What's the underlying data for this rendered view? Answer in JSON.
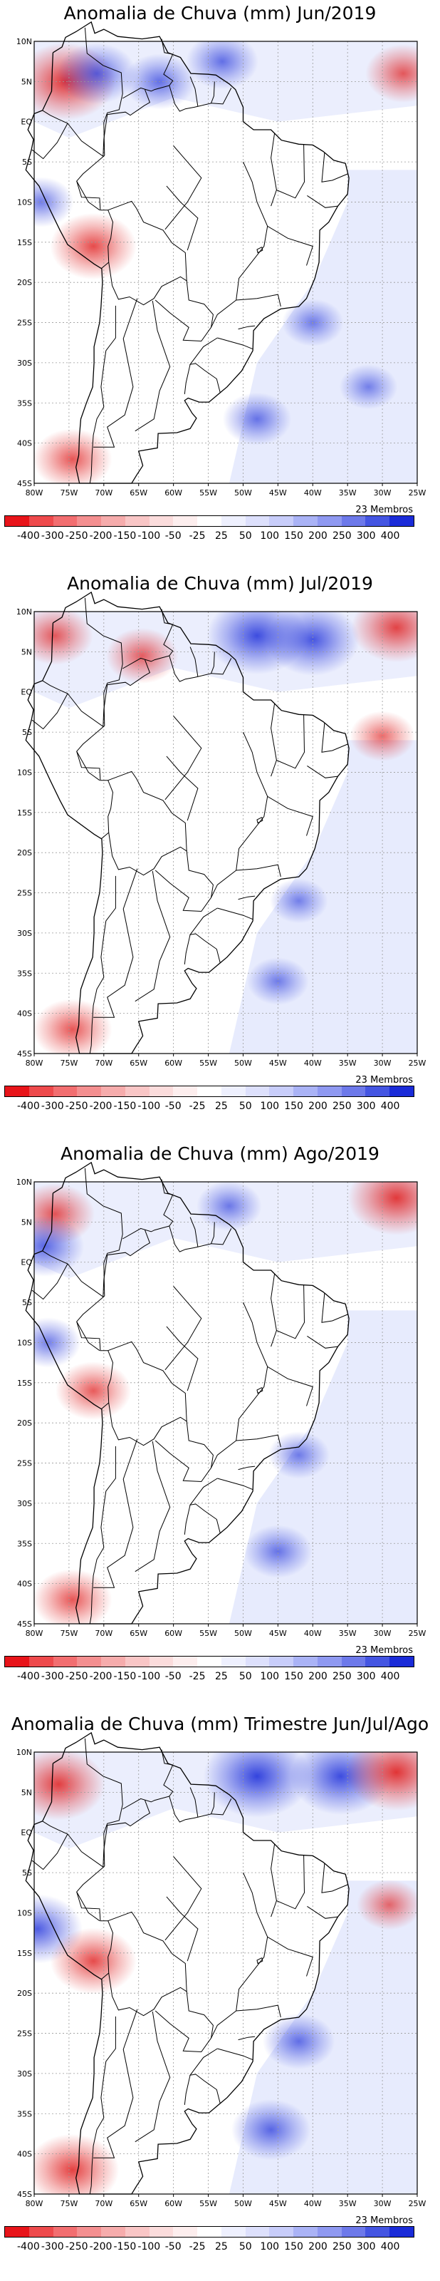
{
  "panels": [
    {
      "title": "Anomalia de Chuva (mm) Jun/2019",
      "members": "23 Membros",
      "anomalies": [
        {
          "kind": "neg",
          "lon": -75.5,
          "lat": 5.0,
          "strength": 0.9
        },
        {
          "kind": "pos",
          "lon": -71.0,
          "lat": 6.0,
          "strength": 0.6
        },
        {
          "kind": "pos",
          "lon": -62.0,
          "lat": 5.0,
          "strength": 0.5
        },
        {
          "kind": "pos",
          "lon": -53.0,
          "lat": 7.5,
          "strength": 0.5
        },
        {
          "kind": "neg",
          "lon": -27.0,
          "lat": 6.0,
          "strength": 0.55
        },
        {
          "kind": "pos",
          "lon": -40.0,
          "lat": -25.0,
          "strength": 0.35
        },
        {
          "kind": "pos",
          "lon": -48.0,
          "lat": -37.0,
          "strength": 0.45
        },
        {
          "kind": "pos",
          "lon": -32.0,
          "lat": -33.0,
          "strength": 0.3
        },
        {
          "kind": "pos",
          "lon": -79.0,
          "lat": -10.0,
          "strength": 0.4
        },
        {
          "kind": "neg",
          "lon": -71.5,
          "lat": -15.5,
          "strength": 0.7
        },
        {
          "kind": "neg",
          "lon": -74.5,
          "lat": -42.0,
          "strength": 0.6
        }
      ]
    },
    {
      "title": "Anomalia de Chuva (mm) Jul/2019",
      "members": "23 Membros",
      "anomalies": [
        {
          "kind": "pos",
          "lon": -48.0,
          "lat": 7.0,
          "strength": 0.9
        },
        {
          "kind": "pos",
          "lon": -40.0,
          "lat": 6.5,
          "strength": 0.8
        },
        {
          "kind": "neg",
          "lon": -28.0,
          "lat": 8.0,
          "strength": 0.75
        },
        {
          "kind": "neg",
          "lon": -64.5,
          "lat": 4.5,
          "strength": 0.5
        },
        {
          "kind": "neg",
          "lon": -77.0,
          "lat": 7.0,
          "strength": 0.55
        },
        {
          "kind": "neg",
          "lon": -30.0,
          "lat": -5.5,
          "strength": 0.4
        },
        {
          "kind": "pos",
          "lon": -42.0,
          "lat": -26.0,
          "strength": 0.3
        },
        {
          "kind": "pos",
          "lon": -45.0,
          "lat": -36.0,
          "strength": 0.35
        },
        {
          "kind": "neg",
          "lon": -74.5,
          "lat": -42.0,
          "strength": 0.6
        }
      ]
    },
    {
      "title": "Anomalia de Chuva (mm) Ago/2019",
      "members": "23 Membros",
      "anomalies": [
        {
          "kind": "neg",
          "lon": -28.0,
          "lat": 8.0,
          "strength": 0.85
        },
        {
          "kind": "neg",
          "lon": -77.0,
          "lat": 6.0,
          "strength": 0.6
        },
        {
          "kind": "pos",
          "lon": -78.5,
          "lat": 2.0,
          "strength": 0.6
        },
        {
          "kind": "pos",
          "lon": -52.0,
          "lat": 7.0,
          "strength": 0.4
        },
        {
          "kind": "neg",
          "lon": -71.5,
          "lat": -16.0,
          "strength": 0.55
        },
        {
          "kind": "pos",
          "lon": -78.0,
          "lat": -10.0,
          "strength": 0.4
        },
        {
          "kind": "pos",
          "lon": -42.0,
          "lat": -24.0,
          "strength": 0.35
        },
        {
          "kind": "pos",
          "lon": -45.0,
          "lat": -36.0,
          "strength": 0.45
        },
        {
          "kind": "neg",
          "lon": -74.5,
          "lat": -42.0,
          "strength": 0.6
        }
      ]
    },
    {
      "title": "Anomalia de Chuva (mm) Trimestre Jun/Jul/Ago",
      "members": "23 Membros",
      "anomalies": [
        {
          "kind": "pos",
          "lon": -48.0,
          "lat": 7.0,
          "strength": 1.0
        },
        {
          "kind": "pos",
          "lon": -36.0,
          "lat": 7.0,
          "strength": 0.9
        },
        {
          "kind": "neg",
          "lon": -28.0,
          "lat": 7.5,
          "strength": 0.9
        },
        {
          "kind": "neg",
          "lon": -76.5,
          "lat": 6.0,
          "strength": 0.8
        },
        {
          "kind": "pos",
          "lon": -79.5,
          "lat": -12.0,
          "strength": 0.75
        },
        {
          "kind": "neg",
          "lon": -71.5,
          "lat": -16.0,
          "strength": 0.7
        },
        {
          "kind": "pos",
          "lon": -42.0,
          "lat": -26.0,
          "strength": 0.5
        },
        {
          "kind": "pos",
          "lon": -46.0,
          "lat": -37.0,
          "strength": 0.6
        },
        {
          "kind": "neg",
          "lon": -74.5,
          "lat": -42.0,
          "strength": 0.8
        },
        {
          "kind": "neg",
          "lon": -29.0,
          "lat": -9.0,
          "strength": 0.4
        }
      ]
    }
  ],
  "map": {
    "lon_ticks": [
      "80W",
      "75W",
      "70W",
      "65W",
      "60W",
      "55W",
      "50W",
      "45W",
      "40W",
      "35W",
      "30W",
      "25W"
    ],
    "lat_ticks": [
      "10N",
      "5N",
      "EQ",
      "5S",
      "10S",
      "15S",
      "20S",
      "25S",
      "30S",
      "35S",
      "40S",
      "45S"
    ],
    "lon_range": [
      -80,
      -25
    ],
    "lat_range": [
      -45,
      10
    ],
    "colors": {
      "land_line": "#000000",
      "grid": "#9a9a9a",
      "pos": "#2a3bdc",
      "neg": "#e02020"
    }
  },
  "colorbar": {
    "labels": [
      "-400",
      "-300",
      "-250",
      "-200",
      "-150",
      "-100",
      "-50",
      "-25",
      "25",
      "50",
      "100",
      "150",
      "200",
      "250",
      "300",
      "400"
    ],
    "colors": [
      "#e8141a",
      "#ee4a4c",
      "#f26e70",
      "#f48f90",
      "#f6acac",
      "#f9c6c6",
      "#fbdcdc",
      "#fdeeee",
      "#ffffff",
      "#eef0fe",
      "#dde0fc",
      "#c8cdfa",
      "#aab3f6",
      "#8f99f1",
      "#6d79ea",
      "#4455e2",
      "#1a2bd8"
    ]
  }
}
